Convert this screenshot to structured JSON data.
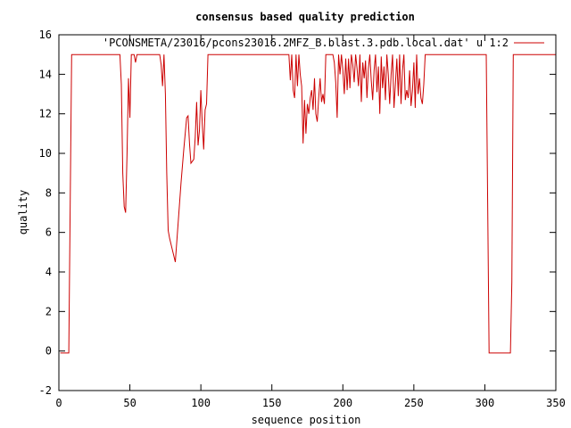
{
  "chart_data": {
    "type": "line",
    "title": "consensus based quality prediction",
    "xlabel": "sequence position",
    "ylabel": "quality",
    "xlim": [
      0,
      350
    ],
    "ylim": [
      -2,
      16
    ],
    "xticks": [
      0,
      50,
      100,
      150,
      200,
      250,
      300,
      350
    ],
    "yticks": [
      -2,
      0,
      2,
      4,
      6,
      8,
      10,
      12,
      14,
      16
    ],
    "grid": false,
    "legend_position": "top-right",
    "series": [
      {
        "name": "'PCONSMETA/23016/pcons23016.2MFZ_B.blast.3.pdb.local.dat' u 1:2",
        "color": "#cc0000",
        "points": [
          [
            1,
            -0.1
          ],
          [
            7,
            -0.1
          ],
          [
            8,
            7.5
          ],
          [
            9,
            15
          ],
          [
            43,
            15
          ],
          [
            44,
            13.5
          ],
          [
            45,
            9
          ],
          [
            46,
            7.3
          ],
          [
            47,
            7
          ],
          [
            48,
            10
          ],
          [
            49,
            13.8
          ],
          [
            50,
            11.8
          ],
          [
            51,
            15
          ],
          [
            53,
            15
          ],
          [
            54,
            14.6
          ],
          [
            55,
            15
          ],
          [
            71,
            15
          ],
          [
            72,
            14.5
          ],
          [
            73,
            13.4
          ],
          [
            74,
            15
          ],
          [
            75,
            13
          ],
          [
            76,
            9
          ],
          [
            77,
            6.1
          ],
          [
            78,
            5.7
          ],
          [
            80,
            5.1
          ],
          [
            82,
            4.5
          ],
          [
            84,
            6.5
          ],
          [
            86,
            8.5
          ],
          [
            88,
            10.2
          ],
          [
            90,
            11.8
          ],
          [
            91,
            11.9
          ],
          [
            92,
            10.5
          ],
          [
            93,
            9.5
          ],
          [
            95,
            9.7
          ],
          [
            96,
            10.8
          ],
          [
            97,
            12.6
          ],
          [
            98,
            10.4
          ],
          [
            99,
            11.2
          ],
          [
            100,
            13.2
          ],
          [
            101,
            11.5
          ],
          [
            102,
            10.2
          ],
          [
            103,
            12.2
          ],
          [
            104,
            12.5
          ],
          [
            105,
            15
          ],
          [
            162,
            15
          ],
          [
            163,
            13.7
          ],
          [
            164,
            15
          ],
          [
            165,
            13.2
          ],
          [
            166,
            12.8
          ],
          [
            167,
            15
          ],
          [
            168,
            13.4
          ],
          [
            169,
            15
          ],
          [
            170,
            14
          ],
          [
            171,
            13.4
          ],
          [
            172,
            10.5
          ],
          [
            173,
            12.7
          ],
          [
            174,
            11
          ],
          [
            175,
            12.5
          ],
          [
            176,
            12
          ],
          [
            177,
            12.8
          ],
          [
            178,
            13.2
          ],
          [
            179,
            12.2
          ],
          [
            180,
            13.8
          ],
          [
            181,
            12
          ],
          [
            182,
            11.6
          ],
          [
            183,
            12.8
          ],
          [
            184,
            13.8
          ],
          [
            185,
            12.6
          ],
          [
            186,
            13
          ],
          [
            187,
            12.5
          ],
          [
            188,
            15
          ],
          [
            193,
            15
          ],
          [
            194,
            14.6
          ],
          [
            195,
            13.6
          ],
          [
            196,
            11.8
          ],
          [
            197,
            15
          ],
          [
            198,
            14
          ],
          [
            199,
            15
          ],
          [
            200,
            14.2
          ],
          [
            201,
            13
          ],
          [
            202,
            14.8
          ],
          [
            203,
            13.2
          ],
          [
            204,
            14.8
          ],
          [
            205,
            13.3
          ],
          [
            206,
            15
          ],
          [
            207,
            14.5
          ],
          [
            208,
            13.6
          ],
          [
            209,
            15
          ],
          [
            210,
            14.3
          ],
          [
            211,
            13.4
          ],
          [
            212,
            15
          ],
          [
            213,
            12.6
          ],
          [
            214,
            14.6
          ],
          [
            215,
            13.8
          ],
          [
            216,
            14.7
          ],
          [
            217,
            12.8
          ],
          [
            218,
            14.3
          ],
          [
            219,
            15
          ],
          [
            220,
            13.7
          ],
          [
            221,
            12.7
          ],
          [
            222,
            14.2
          ],
          [
            223,
            15
          ],
          [
            224,
            13.1
          ],
          [
            225,
            14.4
          ],
          [
            226,
            12
          ],
          [
            227,
            14.9
          ],
          [
            228,
            13.3
          ],
          [
            229,
            14.4
          ],
          [
            230,
            12.7
          ],
          [
            231,
            15
          ],
          [
            232,
            14
          ],
          [
            233,
            12.5
          ],
          [
            234,
            14
          ],
          [
            235,
            15
          ],
          [
            236,
            12.3
          ],
          [
            237,
            13.5
          ],
          [
            238,
            14.8
          ],
          [
            239,
            12.9
          ],
          [
            240,
            15
          ],
          [
            241,
            12.5
          ],
          [
            242,
            14.2
          ],
          [
            243,
            15
          ],
          [
            244,
            12.7
          ],
          [
            245,
            13.2
          ],
          [
            246,
            12.8
          ],
          [
            247,
            14.2
          ],
          [
            248,
            12.4
          ],
          [
            249,
            13.2
          ],
          [
            250,
            14.6
          ],
          [
            251,
            12.3
          ],
          [
            252,
            15
          ],
          [
            253,
            13
          ],
          [
            254,
            13.8
          ],
          [
            255,
            12.8
          ],
          [
            256,
            12.5
          ],
          [
            257,
            13.5
          ],
          [
            258,
            15
          ],
          [
            262,
            15
          ],
          [
            301,
            15
          ],
          [
            302,
            7.5
          ],
          [
            303,
            -0.1
          ],
          [
            318,
            -0.1
          ],
          [
            319,
            3.5
          ],
          [
            320,
            15
          ],
          [
            350,
            15
          ]
        ]
      }
    ]
  }
}
